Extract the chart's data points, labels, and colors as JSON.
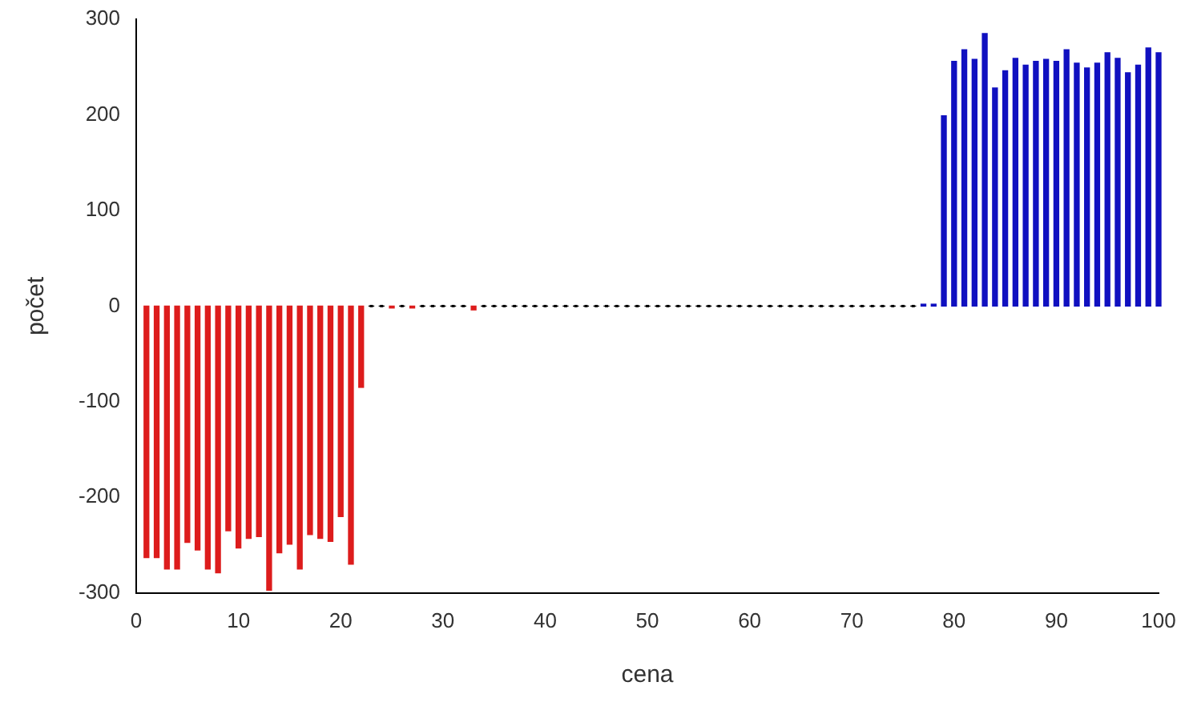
{
  "chart_data": {
    "type": "bar",
    "xlabel": "cena",
    "ylabel": "počet",
    "x": [
      1,
      2,
      3,
      4,
      5,
      6,
      7,
      8,
      9,
      10,
      11,
      12,
      13,
      14,
      15,
      16,
      17,
      18,
      19,
      20,
      21,
      22,
      23,
      24,
      25,
      26,
      27,
      28,
      29,
      30,
      31,
      32,
      33,
      34,
      35,
      36,
      37,
      38,
      39,
      40,
      41,
      42,
      43,
      44,
      45,
      46,
      47,
      48,
      49,
      50,
      51,
      52,
      53,
      54,
      55,
      56,
      57,
      58,
      59,
      60,
      61,
      62,
      63,
      64,
      65,
      66,
      67,
      68,
      69,
      70,
      71,
      72,
      73,
      74,
      75,
      76,
      77,
      78,
      79,
      80,
      81,
      82,
      83,
      84,
      85,
      86,
      87,
      88,
      89,
      90,
      91,
      92,
      93,
      94,
      95,
      96,
      97,
      98,
      99,
      100
    ],
    "values": [
      -263,
      -263,
      -275,
      -275,
      -247,
      -255,
      -275,
      -279,
      -235,
      -253,
      -243,
      -241,
      -297,
      -258,
      -249,
      -275,
      -239,
      -243,
      -246,
      -220,
      -270,
      -85,
      0,
      0,
      -2,
      0,
      -2,
      0,
      0,
      0,
      0,
      0,
      -4,
      0,
      0,
      0,
      0,
      0,
      0,
      0,
      0,
      0,
      0,
      0,
      0,
      0,
      0,
      0,
      0,
      0,
      0,
      0,
      0,
      0,
      0,
      0,
      0,
      0,
      0,
      0,
      0,
      0,
      0,
      0,
      0,
      0,
      0,
      0,
      0,
      0,
      0,
      0,
      0,
      0,
      0,
      0,
      2,
      2,
      199,
      256,
      268,
      258,
      285,
      228,
      246,
      259,
      252,
      256,
      258,
      256,
      268,
      254,
      249,
      254,
      265,
      259,
      244,
      252,
      270,
      265
    ],
    "colors": [
      "#dd1c1c",
      "#dd1c1c",
      "#dd1c1c",
      "#dd1c1c",
      "#dd1c1c",
      "#dd1c1c",
      "#dd1c1c",
      "#dd1c1c",
      "#dd1c1c",
      "#dd1c1c",
      "#dd1c1c",
      "#dd1c1c",
      "#dd1c1c",
      "#dd1c1c",
      "#dd1c1c",
      "#dd1c1c",
      "#dd1c1c",
      "#dd1c1c",
      "#dd1c1c",
      "#dd1c1c",
      "#dd1c1c",
      "#dd1c1c",
      "#000000",
      "#000000",
      "#dd1c1c",
      "#000000",
      "#dd1c1c",
      "#000000",
      "#000000",
      "#000000",
      "#000000",
      "#000000",
      "#dd1c1c",
      "#000000",
      "#000000",
      "#000000",
      "#000000",
      "#000000",
      "#000000",
      "#000000",
      "#000000",
      "#000000",
      "#000000",
      "#000000",
      "#000000",
      "#000000",
      "#000000",
      "#000000",
      "#000000",
      "#000000",
      "#000000",
      "#000000",
      "#000000",
      "#000000",
      "#000000",
      "#000000",
      "#000000",
      "#000000",
      "#000000",
      "#000000",
      "#000000",
      "#000000",
      "#000000",
      "#000000",
      "#000000",
      "#000000",
      "#000000",
      "#000000",
      "#000000",
      "#000000",
      "#000000",
      "#000000",
      "#000000",
      "#000000",
      "#000000",
      "#000000",
      "#1010c0",
      "#1010c0",
      "#1010c0",
      "#1010c0",
      "#1010c0",
      "#1010c0",
      "#1010c0",
      "#1010c0",
      "#1010c0",
      "#1010c0",
      "#1010c0",
      "#1010c0",
      "#1010c0",
      "#1010c0",
      "#1010c0",
      "#1010c0",
      "#1010c0",
      "#1010c0",
      "#1010c0",
      "#1010c0",
      "#1010c0",
      "#1010c0",
      "#1010c0",
      "#1010c0"
    ],
    "xlim": [
      0,
      100
    ],
    "xticks": [
      0,
      10,
      20,
      30,
      40,
      50,
      60,
      70,
      80,
      90,
      100
    ],
    "ylim": [
      -300,
      300
    ],
    "yticks": [
      -300,
      -200,
      -100,
      0,
      100,
      200,
      300
    ],
    "grid": false,
    "legend": false
  }
}
